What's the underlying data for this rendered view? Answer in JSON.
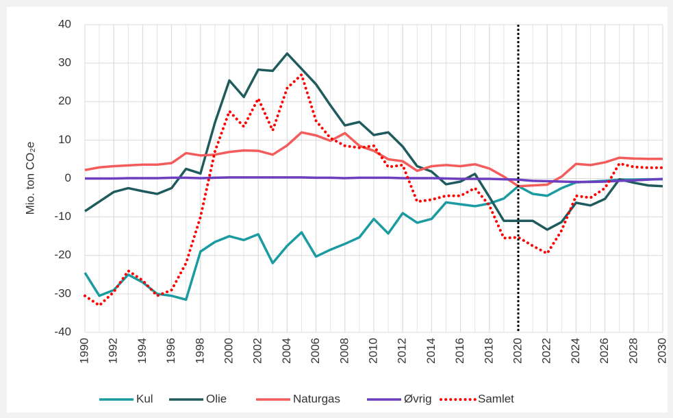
{
  "chart_data": {
    "type": "line",
    "y_label": "Mio. ton CO₂e",
    "x": [
      1990,
      1991,
      1992,
      1993,
      1994,
      1995,
      1996,
      1997,
      1998,
      1999,
      2000,
      2001,
      2002,
      2003,
      2004,
      2005,
      2006,
      2007,
      2008,
      2009,
      2010,
      2011,
      2012,
      2013,
      2014,
      2015,
      2016,
      2017,
      2018,
      2019,
      2020,
      2021,
      2022,
      2023,
      2024,
      2025,
      2026,
      2027,
      2028,
      2029,
      2030
    ],
    "series": [
      {
        "name": "Kul",
        "color": "#1a9ba1",
        "style": "solid",
        "values": [
          -24.5,
          -30.5,
          -29,
          -25,
          -27,
          -30,
          -30.5,
          -31.5,
          -19,
          -16.5,
          -15,
          -16,
          -14.5,
          -22,
          -17.5,
          -14,
          -20.3,
          -18.5,
          -17,
          -15.3,
          -10.5,
          -14.3,
          -9,
          -11.5,
          -10.5,
          -6.2,
          -6.7,
          -7.2,
          -6.5,
          -5.2,
          -2,
          -4,
          -4.5,
          -2.5,
          -1,
          -0.8,
          -0.6,
          -0.3,
          -0.3,
          -0.2,
          -0.2
        ]
      },
      {
        "name": "Olie",
        "color": "#1f5b5c",
        "style": "solid",
        "values": [
          -8.5,
          -6,
          -3.5,
          -2.5,
          -3.3,
          -4,
          -2.5,
          2.5,
          1.3,
          14.5,
          25.5,
          21.2,
          28.3,
          28,
          32.5,
          28.5,
          24.5,
          19,
          13.8,
          14.7,
          11.3,
          12,
          8.3,
          3.2,
          1.8,
          -1.5,
          -0.8,
          1.2,
          -4.8,
          -11,
          -11,
          -11,
          -13.3,
          -11.3,
          -6.3,
          -7,
          -5.3,
          -0.2,
          -1.1,
          -1.8,
          -2
        ]
      },
      {
        "name": "Naturgas",
        "color": "#f45b5b",
        "style": "solid",
        "values": [
          2.2,
          2.9,
          3.2,
          3.4,
          3.6,
          3.6,
          4,
          6.6,
          6,
          6.2,
          6.9,
          7.3,
          7.2,
          6.2,
          8.6,
          12,
          11.2,
          9.8,
          11.8,
          8.5,
          7.2,
          5,
          4.5,
          2,
          3.2,
          3.5,
          3.2,
          3.7,
          2.6,
          0.5,
          -2,
          -1.8,
          -1.6,
          0.5,
          3.8,
          3.5,
          4.2,
          5.4,
          5.2,
          5.1,
          5.1
        ]
      },
      {
        "name": "Øvrig",
        "color": "#6b3fc0",
        "style": "solid",
        "values": [
          0,
          0,
          0,
          0.1,
          0.1,
          0.1,
          0.2,
          0.2,
          0.1,
          0.2,
          0.3,
          0.3,
          0.3,
          0.3,
          0.3,
          0.3,
          0.2,
          0.2,
          0.1,
          0.2,
          0.2,
          0.2,
          0.1,
          0.1,
          0.1,
          0,
          -0.1,
          -0.1,
          -0.1,
          -0.2,
          -0.3,
          -0.6,
          -0.7,
          -0.8,
          -0.9,
          -0.9,
          -0.8,
          -0.6,
          -0.5,
          -0.3,
          -0.1
        ]
      },
      {
        "name": "Samlet",
        "color": "#ff0000",
        "style": "dotted",
        "values": [
          -30.5,
          -33,
          -29.5,
          -24,
          -26.5,
          -30.5,
          -29,
          -22,
          -10,
          7,
          17.5,
          13.5,
          20.8,
          12.5,
          23.5,
          27,
          15,
          10.5,
          8.5,
          8,
          8.5,
          3,
          3.5,
          -6,
          -5.5,
          -4.5,
          -4.5,
          -2.5,
          -7,
          -15.5,
          -15.3,
          -17.5,
          -19.5,
          -13.5,
          -4.5,
          -5,
          -2.5,
          3.9,
          3,
          2.8,
          2.8
        ]
      }
    ],
    "xlim": [
      1990,
      2030
    ],
    "xticks": [
      1990,
      1992,
      1994,
      1996,
      1998,
      2000,
      2002,
      2004,
      2006,
      2008,
      2010,
      2012,
      2014,
      2016,
      2018,
      2020,
      2022,
      2024,
      2026,
      2028,
      2030
    ],
    "ylim": [
      -40,
      40
    ],
    "yticks": [
      -40,
      -30,
      -20,
      -10,
      0,
      10,
      20,
      30,
      40
    ],
    "grid": true,
    "minor_x_grid_step": 1,
    "marker_x": 2020,
    "legend": "bottom"
  }
}
